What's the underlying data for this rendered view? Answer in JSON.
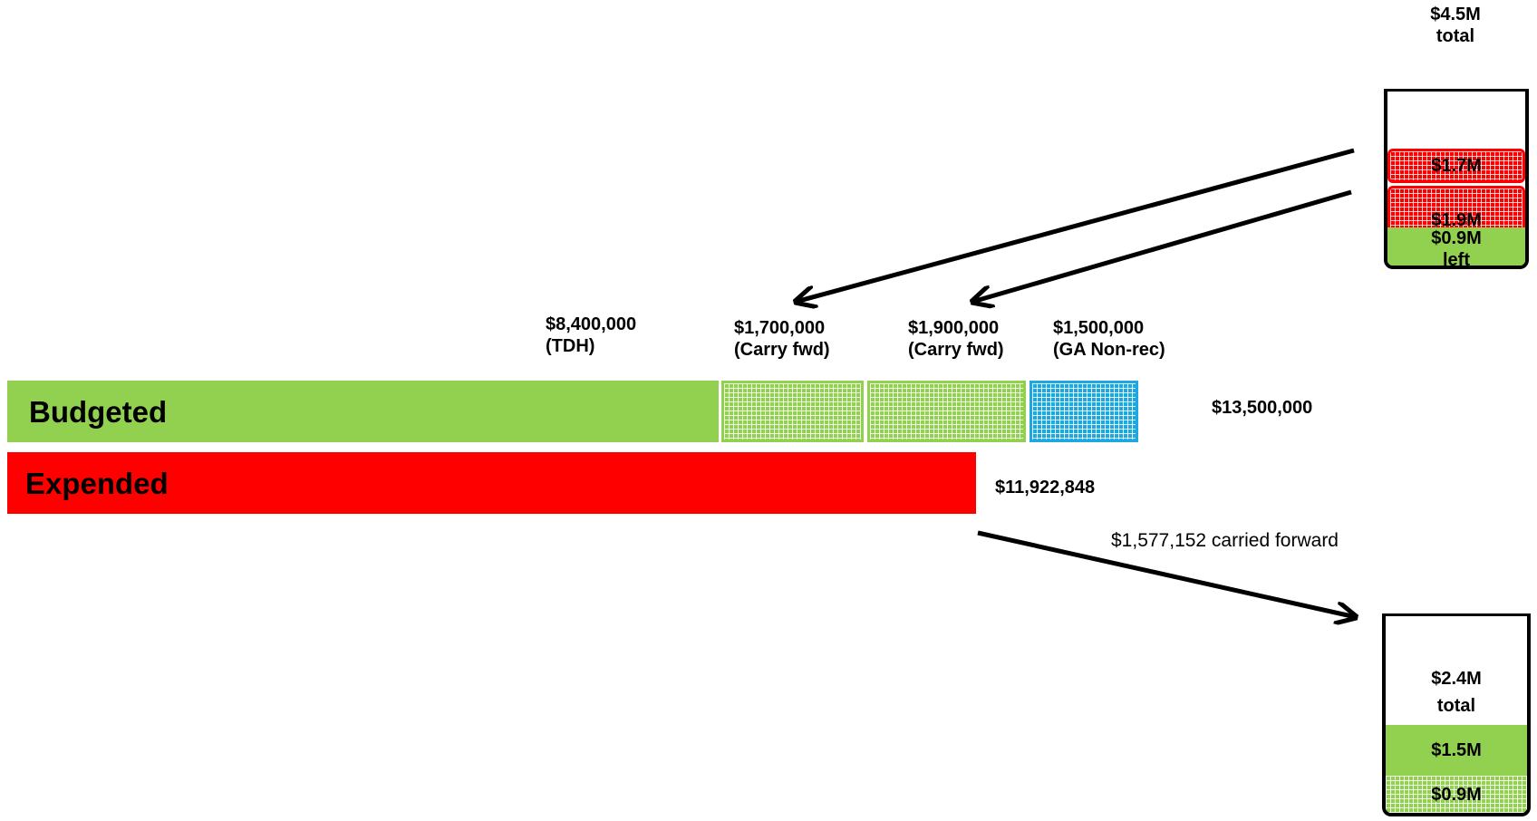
{
  "colors": {
    "green": "#92d050",
    "red": "#ff0000",
    "blue": "#1fa8e0",
    "arrow": "#000000"
  },
  "top_jar": {
    "title_line1": "$4.5M",
    "title_line2": "total",
    "seg1": "$1.7M",
    "seg2": "$1.9M",
    "seg3_line1": "$0.9M",
    "seg3_line2": "left"
  },
  "segment_labels": {
    "tdh_amount": "$8,400,000",
    "tdh_note": "(TDH)",
    "cf1_amount": "$1,700,000",
    "cf1_note": "(Carry fwd)",
    "cf2_amount": "$1,900,000",
    "cf2_note": "(Carry fwd)",
    "ga_amount": "$1,500,000",
    "ga_note": "(GA Non-rec)"
  },
  "budgeted": {
    "label": "Budgeted",
    "total": "$13,500,000"
  },
  "expended": {
    "label": "Expended",
    "total": "$11,922,848"
  },
  "carried_forward": "$1,577,152 carried forward",
  "bottom_jar": {
    "title_line1": "$2.4M",
    "title_line2": "total",
    "seg1": "$1.5M",
    "seg2": "$0.9M"
  }
}
